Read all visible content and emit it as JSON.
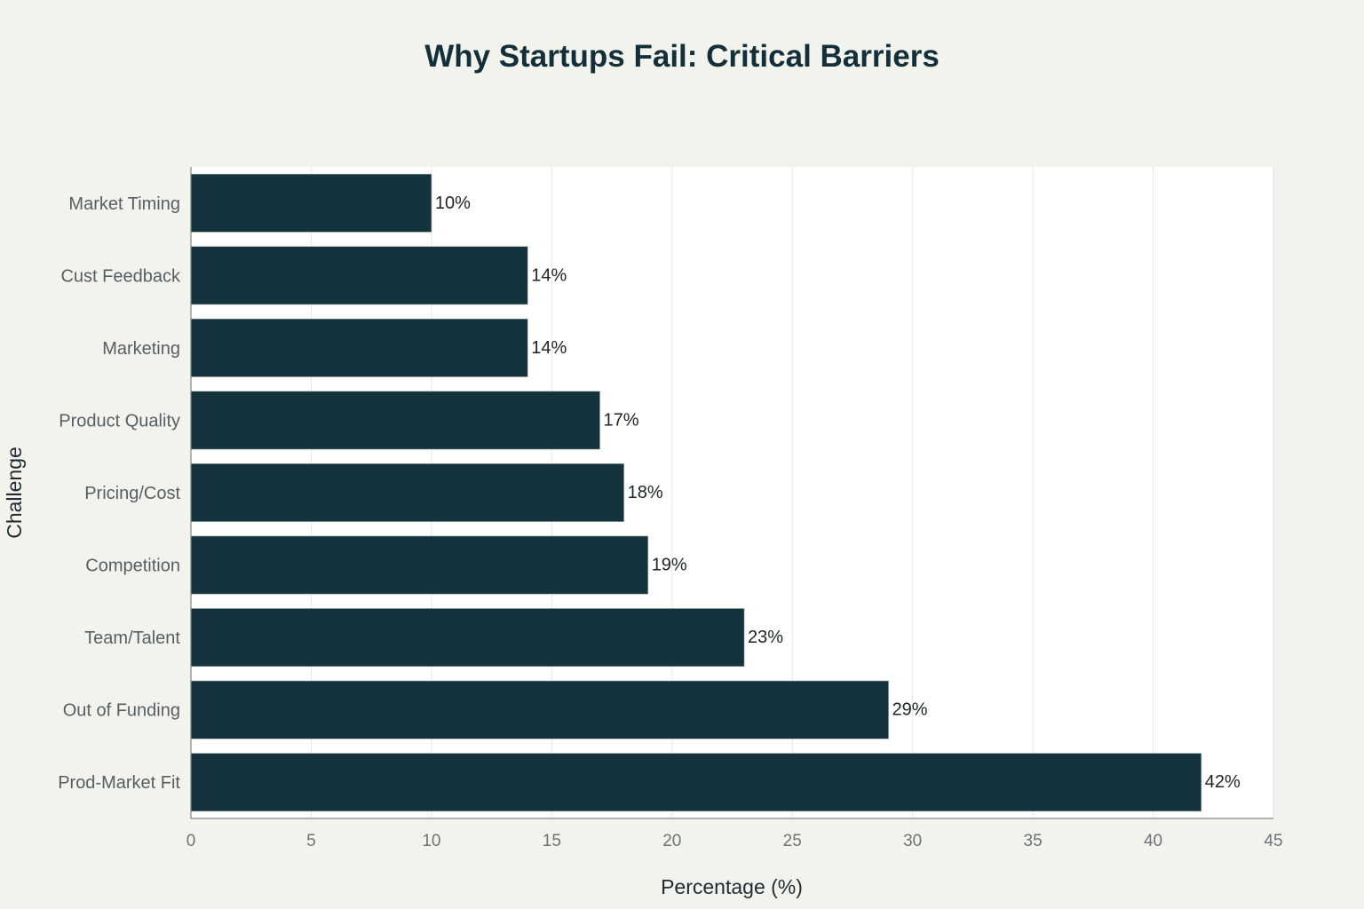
{
  "chart_data": {
    "type": "bar",
    "orientation": "horizontal",
    "title": "Why Startups Fail: Critical Barriers",
    "xlabel": "Percentage (%)",
    "ylabel": "Challenge",
    "categories": [
      "Market Timing",
      "Cust Feedback",
      "Marketing",
      "Product Quality",
      "Pricing/Cost",
      "Competition",
      "Team/Talent",
      "Out of Funding",
      "Prod-Market Fit"
    ],
    "values": [
      10,
      14,
      14,
      17,
      18,
      19,
      23,
      29,
      42
    ],
    "value_labels": [
      "10%",
      "14%",
      "14%",
      "17%",
      "18%",
      "19%",
      "23%",
      "29%",
      "42%"
    ],
    "xlim": [
      0,
      45
    ],
    "xticks": [
      0,
      5,
      10,
      15,
      20,
      25,
      30,
      35,
      40,
      45
    ],
    "grid": "vertical",
    "colors": {
      "bar": "#15333c",
      "background": "#f3f3ee",
      "plot_background": "#ffffff",
      "grid": "#e6e6e6"
    }
  }
}
